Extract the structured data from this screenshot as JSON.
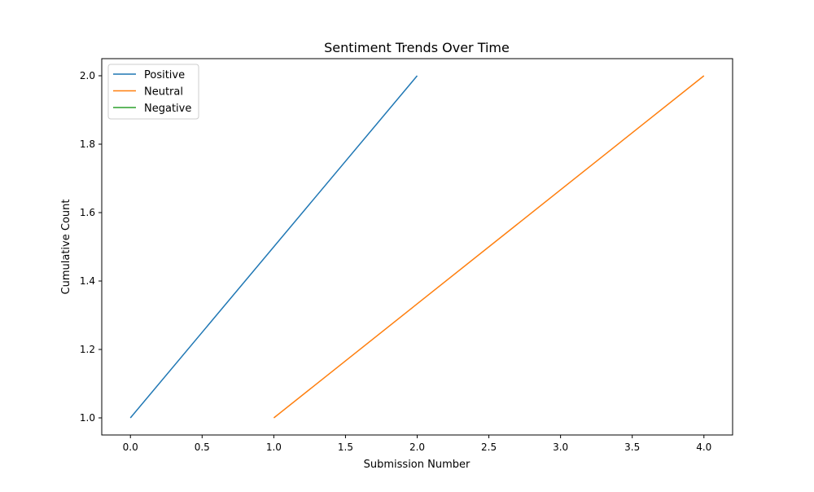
{
  "chart_data": {
    "type": "line",
    "title": "Sentiment Trends Over Time",
    "xlabel": "Submission Number",
    "ylabel": "Cumulative Count",
    "xlim": [
      -0.2,
      4.2
    ],
    "ylim": [
      0.95,
      2.05
    ],
    "xticks": [
      0.0,
      0.5,
      1.0,
      1.5,
      2.0,
      2.5,
      3.0,
      3.5,
      4.0
    ],
    "xtick_labels": [
      "0.0",
      "0.5",
      "1.0",
      "1.5",
      "2.0",
      "2.5",
      "3.0",
      "3.5",
      "4.0"
    ],
    "yticks": [
      1.0,
      1.2,
      1.4,
      1.6,
      1.8,
      2.0
    ],
    "ytick_labels": [
      "1.0",
      "1.2",
      "1.4",
      "1.6",
      "1.8",
      "2.0"
    ],
    "grid": false,
    "legend_position": "top-left",
    "series": [
      {
        "name": "Positive",
        "color": "#1f77b4",
        "x": [
          0,
          2
        ],
        "y": [
          1,
          2
        ]
      },
      {
        "name": "Neutral",
        "color": "#ff7f0e",
        "x": [
          1,
          4
        ],
        "y": [
          1,
          2
        ]
      },
      {
        "name": "Negative",
        "color": "#2ca02c",
        "x": [],
        "y": []
      }
    ]
  }
}
